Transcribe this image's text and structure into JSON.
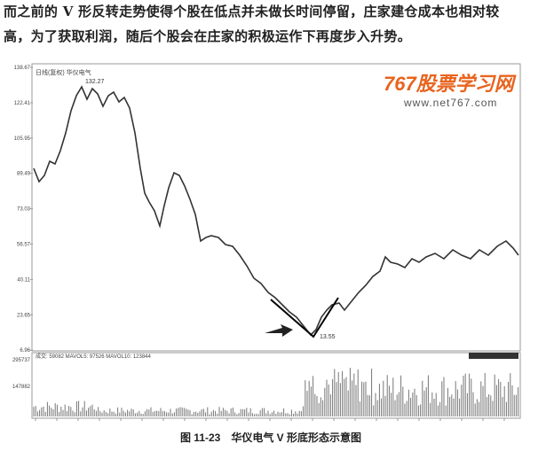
{
  "paragraph": [
    "而之前的 V 形反转走势使得个股在低点并未做长时间停留，庄家建仓成本也相对较",
    "高，为了获取利润，随后个股会在庄家的积极运作下再度步入升势。"
  ],
  "figure": {
    "header": "日线(复权)  华仪电气",
    "watermark": "767股票学习网",
    "url": "www.net767.com",
    "y_labels": [
      "138.67",
      "122.41",
      "105.95",
      "89.49",
      "73.03",
      "56.57",
      "40.11",
      "23.65",
      "6.96"
    ],
    "high_label": "132.27",
    "low_label": "13.55",
    "volume_header": "成交: 59082  MAVOL5: 97526  MAVOL10: 123844",
    "volume_labels": [
      "295737",
      "147882"
    ],
    "caption": "图 11-23　华仪电气 V 形底形态示意图"
  }
}
